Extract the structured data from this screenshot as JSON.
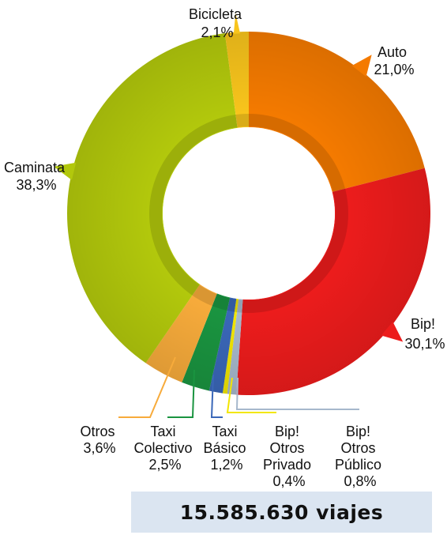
{
  "chart_data": {
    "type": "pie",
    "title": "",
    "slices": [
      {
        "label": "Auto",
        "value": 21.0,
        "display": "21,0%",
        "color": "#f47a00"
      },
      {
        "label": "Bip!",
        "value": 30.1,
        "display": "30,1%",
        "color": "#ec1c1c"
      },
      {
        "label": "Bip! Otros Público",
        "value": 0.8,
        "display": "0,8%",
        "color": "#a6b8cc"
      },
      {
        "label": "Bip! Otros Privado",
        "value": 0.4,
        "display": "0,4%",
        "color": "#f2e600"
      },
      {
        "label": "Taxi Básico",
        "value": 1.2,
        "display": "1,2%",
        "color": "#3a67b8"
      },
      {
        "label": "Taxi Colectivo",
        "value": 2.5,
        "display": "2,5%",
        "color": "#1a9440"
      },
      {
        "label": "Otros",
        "value": 3.6,
        "display": "3,6%",
        "color": "#f7ab3b"
      },
      {
        "label": "Caminata",
        "value": 38.3,
        "display": "38,3%",
        "color": "#b2c80c"
      },
      {
        "label": "Bicicleta",
        "value": 2.1,
        "display": "2,1%",
        "color": "#f8c41c"
      }
    ],
    "labels": {
      "auto": [
        "Auto",
        "21,0%"
      ],
      "bip": [
        "Bip!",
        "30,1%"
      ],
      "bip_publico": [
        "Bip!",
        "Otros",
        "Público",
        "0,8%"
      ],
      "bip_privado": [
        "Bip!",
        "Otros",
        "Privado",
        "0,4%"
      ],
      "taxi_basico": [
        "Taxi",
        "Básico",
        "1,2%"
      ],
      "taxi_colectivo": [
        "Taxi",
        "Colectivo",
        "2,5%"
      ],
      "otros": [
        "Otros",
        "3,6%"
      ],
      "caminata": [
        "Caminata",
        "38,3%"
      ],
      "bicicleta": [
        "Bicicleta",
        "2,1%"
      ]
    }
  },
  "total": {
    "text": "15.585.630  viajes",
    "background": "#dbe5f1"
  }
}
